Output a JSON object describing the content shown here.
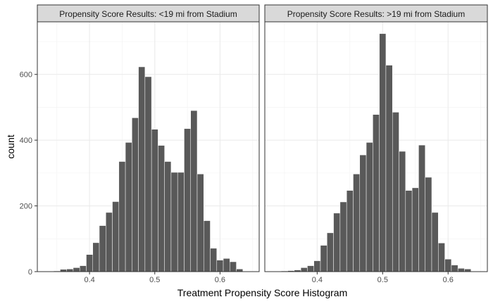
{
  "chart_data": {
    "type": "bar",
    "title": "",
    "xlabel": "Treatment Propensity Score Histogram",
    "ylabel": "count",
    "xlim": [
      0.32,
      0.66
    ],
    "ylim": [
      0,
      760
    ],
    "x_ticks": [
      0.4,
      0.5,
      0.6
    ],
    "x_tick_labels": [
      "0.4",
      "0.5",
      "0.6"
    ],
    "y_ticks": [
      0,
      200,
      400,
      600
    ],
    "y_tick_labels": [
      "0",
      "200",
      "400",
      "600"
    ],
    "grid": true,
    "bar_color": "#595959",
    "bin_width": 0.01,
    "bin_centers": [
      0.35,
      0.36,
      0.37,
      0.38,
      0.39,
      0.4,
      0.41,
      0.42,
      0.43,
      0.44,
      0.45,
      0.46,
      0.47,
      0.48,
      0.49,
      0.5,
      0.51,
      0.52,
      0.53,
      0.54,
      0.55,
      0.56,
      0.57,
      0.58,
      0.59,
      0.6,
      0.61,
      0.62,
      0.63
    ],
    "panels": [
      {
        "strip": "Propensity Score Results: <19 mi from Stadium",
        "values": [
          2,
          7,
          8,
          12,
          18,
          52,
          88,
          140,
          180,
          213,
          335,
          393,
          468,
          623,
          593,
          433,
          384,
          335,
          302,
          302,
          435,
          490,
          297,
          155,
          71,
          35,
          40,
          30,
          8
        ]
      },
      {
        "strip": "Propensity Score Results: >19 mi from Stadium",
        "values": [
          2,
          3,
          5,
          12,
          18,
          33,
          80,
          118,
          178,
          212,
          247,
          297,
          355,
          393,
          478,
          724,
          628,
          485,
          366,
          247,
          255,
          385,
          287,
          180,
          87,
          38,
          20,
          10,
          8
        ]
      }
    ]
  }
}
